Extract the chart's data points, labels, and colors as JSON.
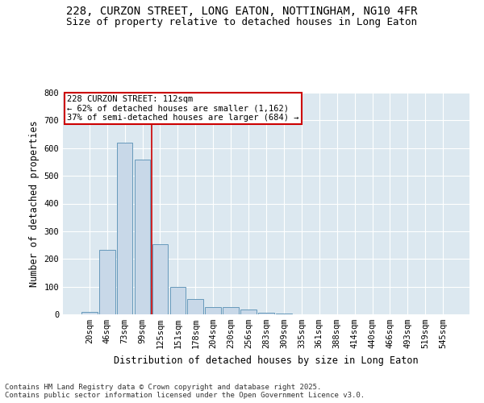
{
  "title_line1": "228, CURZON STREET, LONG EATON, NOTTINGHAM, NG10 4FR",
  "title_line2": "Size of property relative to detached houses in Long Eaton",
  "xlabel": "Distribution of detached houses by size in Long Eaton",
  "ylabel": "Number of detached properties",
  "categories": [
    "20sqm",
    "46sqm",
    "73sqm",
    "99sqm",
    "125sqm",
    "151sqm",
    "178sqm",
    "204sqm",
    "230sqm",
    "256sqm",
    "283sqm",
    "309sqm",
    "335sqm",
    "361sqm",
    "388sqm",
    "414sqm",
    "440sqm",
    "466sqm",
    "493sqm",
    "519sqm",
    "545sqm"
  ],
  "values": [
    8,
    232,
    620,
    560,
    252,
    98,
    55,
    25,
    25,
    18,
    5,
    2,
    0,
    0,
    0,
    0,
    0,
    0,
    0,
    0,
    0
  ],
  "bar_color": "#c8d8e8",
  "bar_edge_color": "#6699bb",
  "vline_x_index": 3.5,
  "vline_color": "#cc0000",
  "annotation_text": "228 CURZON STREET: 112sqm\n← 62% of detached houses are smaller (1,162)\n37% of semi-detached houses are larger (684) →",
  "annotation_box_color": "#ffffff",
  "annotation_box_edge_color": "#cc0000",
  "ylim": [
    0,
    800
  ],
  "yticks": [
    0,
    100,
    200,
    300,
    400,
    500,
    600,
    700,
    800
  ],
  "background_color": "#dce8f0",
  "grid_color": "#ffffff",
  "fig_background": "#ffffff",
  "footer_line1": "Contains HM Land Registry data © Crown copyright and database right 2025.",
  "footer_line2": "Contains public sector information licensed under the Open Government Licence v3.0.",
  "title_fontsize": 10,
  "subtitle_fontsize": 9,
  "axis_label_fontsize": 8.5,
  "tick_fontsize": 7.5,
  "annotation_fontsize": 7.5,
  "footer_fontsize": 6.5
}
